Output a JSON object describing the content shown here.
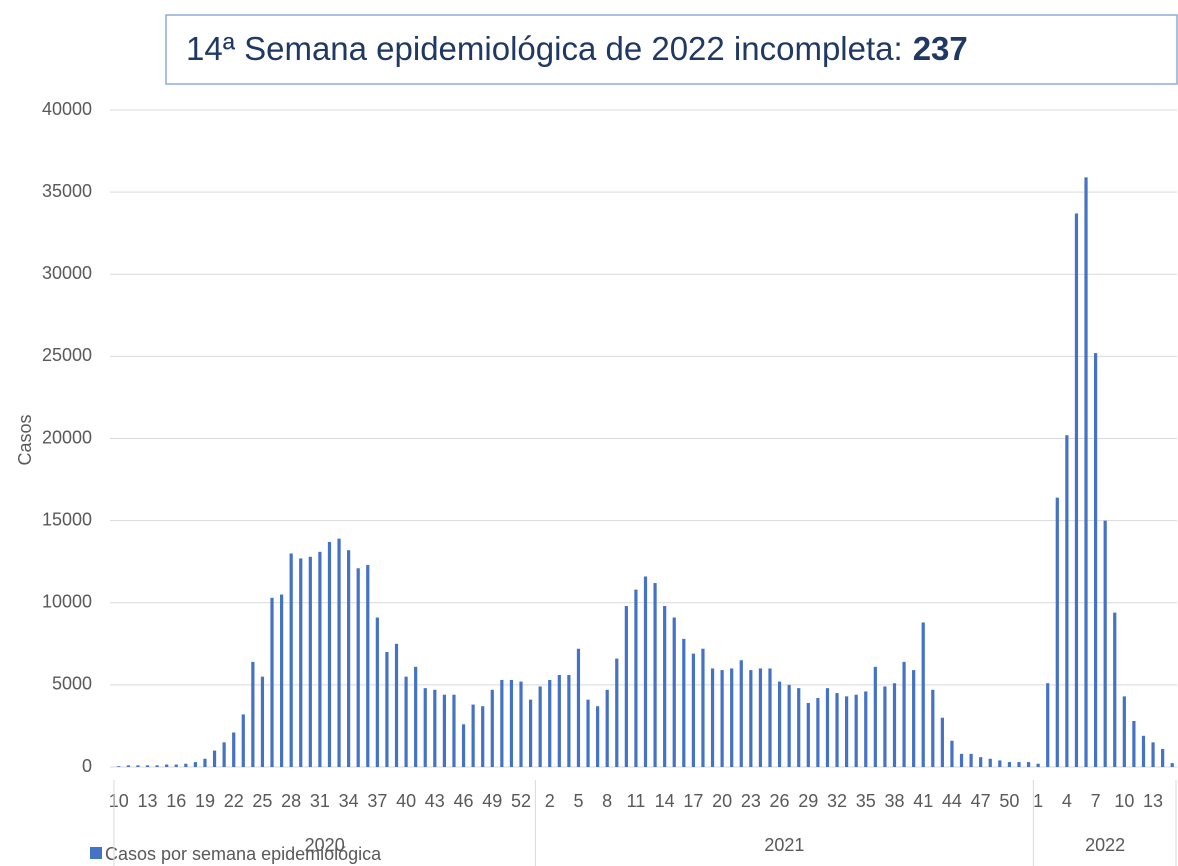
{
  "chart_data": {
    "type": "bar",
    "title": "14ª Semana epidemiológica de 2022 incompleta:",
    "title_value": 237,
    "ylabel": "Casos",
    "legend": "Casos por semana epidemiológica",
    "color": "#4472c4",
    "grid": true,
    "ylim": [
      0,
      40000
    ],
    "yticks": [
      0,
      5000,
      10000,
      15000,
      20000,
      25000,
      30000,
      35000,
      40000
    ],
    "groups": [
      {
        "name": "2020",
        "count": 44
      },
      {
        "name": "2021",
        "count": 52
      },
      {
        "name": "2022",
        "count": 15
      }
    ],
    "categories": [
      "10",
      null,
      null,
      "13",
      null,
      null,
      "16",
      null,
      null,
      "19",
      null,
      null,
      "22",
      null,
      null,
      "25",
      null,
      null,
      "28",
      null,
      null,
      "31",
      null,
      null,
      "34",
      null,
      null,
      "37",
      null,
      null,
      "40",
      null,
      null,
      "43",
      null,
      null,
      "46",
      null,
      null,
      "49",
      null,
      null,
      "52",
      null,
      null,
      "2",
      null,
      null,
      "5",
      null,
      null,
      "8",
      null,
      null,
      "11",
      null,
      null,
      "14",
      null,
      null,
      "17",
      null,
      null,
      "20",
      null,
      null,
      "23",
      null,
      null,
      "26",
      null,
      null,
      "29",
      null,
      null,
      "32",
      null,
      null,
      "35",
      null,
      null,
      "38",
      null,
      null,
      "41",
      null,
      null,
      "44",
      null,
      null,
      "47",
      null,
      null,
      "50",
      null,
      null,
      "1",
      null,
      null,
      "4",
      null,
      null,
      "7",
      null,
      null,
      "10",
      null,
      null,
      "13",
      null,
      null
    ],
    "values": [
      50,
      100,
      100,
      100,
      100,
      150,
      150,
      200,
      300,
      500,
      1000,
      1500,
      2100,
      3200,
      6400,
      5500,
      10300,
      10500,
      13000,
      12700,
      12800,
      13100,
      13700,
      13900,
      13200,
      12100,
      12300,
      9100,
      7000,
      7500,
      5500,
      6100,
      4800,
      4700,
      4400,
      4400,
      2600,
      3800,
      3700,
      4700,
      5300,
      5300,
      5200,
      4100,
      4900,
      5300,
      5600,
      5600,
      7200,
      4100,
      3700,
      4700,
      6600,
      9800,
      10800,
      11600,
      11200,
      9800,
      9100,
      7800,
      6900,
      7200,
      6000,
      5900,
      6000,
      6500,
      5900,
      6000,
      6000,
      5200,
      5000,
      4800,
      3900,
      4200,
      4800,
      4500,
      4300,
      4400,
      4600,
      6100,
      4900,
      5100,
      6400,
      5900,
      8800,
      4700,
      3000,
      1600,
      800,
      800,
      600,
      500,
      400,
      300,
      300,
      300,
      200,
      5100,
      16400,
      20200,
      33700,
      35900,
      25200,
      15000,
      9400,
      4300,
      2800,
      1900,
      1500,
      1100,
      237
    ]
  }
}
